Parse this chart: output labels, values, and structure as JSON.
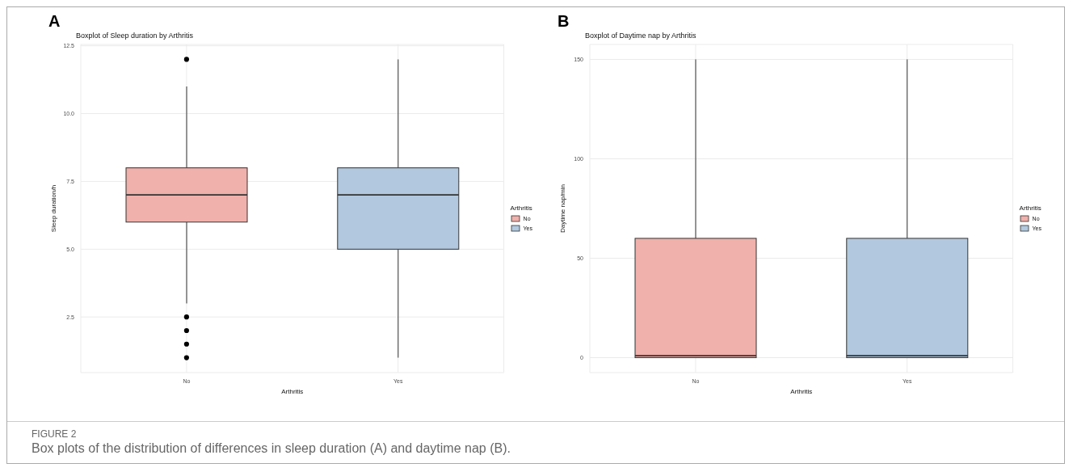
{
  "chart_data": [
    {
      "type": "box",
      "title": "Boxplot of Sleep duration by Arthritis",
      "xlabel": "Arthritis",
      "ylabel": "Sleep duration/h",
      "legend_title": "Arthritis",
      "legend": "right",
      "grid": true,
      "categories": [
        "No",
        "Yes"
      ],
      "series": [
        {
          "name": "No",
          "color": "#f0b0ab",
          "boxes": [
            {
              "low": 3,
              "q1": 6,
              "median": 7,
              "q3": 8,
              "high": 11,
              "outliers": [
                12,
                2.5,
                2,
                1.5,
                1
              ]
            },
            null
          ]
        },
        {
          "name": "Yes",
          "color": "#b1c8de",
          "boxes": [
            null,
            {
              "low": 1,
              "q1": 5,
              "median": 7,
              "q3": 8,
              "high": 12
            }
          ]
        }
      ],
      "ylim": [
        0.45,
        12.55
      ],
      "yticks": [
        {
          "value": 2.5,
          "label": "2.5"
        },
        {
          "value": 5,
          "label": "5.0"
        },
        {
          "value": 7.5,
          "label": "7.5"
        },
        {
          "value": 10,
          "label": "10.0"
        },
        {
          "value": 12.5,
          "label": "12.5"
        }
      ],
      "annotations": [
        "A",
        "FIGURE 2",
        "Box plots of the distribution of differences in sleep duration (A) and daytime nap (B)."
      ]
    },
    {
      "type": "box",
      "title": "Boxplot of Daytime nap by Arthritis",
      "xlabel": "Arthritis",
      "ylabel": "Daytime nap/min",
      "legend_title": "Arthritis",
      "legend": "right",
      "grid": true,
      "categories": [
        "No",
        "Yes"
      ],
      "series": [
        {
          "name": "No",
          "color": "#f0b0ab",
          "boxes": [
            {
              "low": 0,
              "q1": 0,
              "median": 1,
              "q3": 60,
              "high": 150
            },
            null
          ]
        },
        {
          "name": "Yes",
          "color": "#b1c8de",
          "boxes": [
            null,
            {
              "low": 0,
              "q1": 0,
              "median": 1,
              "q3": 60,
              "high": 150
            }
          ]
        }
      ],
      "ylim": [
        -7.5,
        157.5
      ],
      "yticks": [
        0,
        50,
        100,
        150
      ],
      "annotations": [
        "B"
      ]
    }
  ]
}
